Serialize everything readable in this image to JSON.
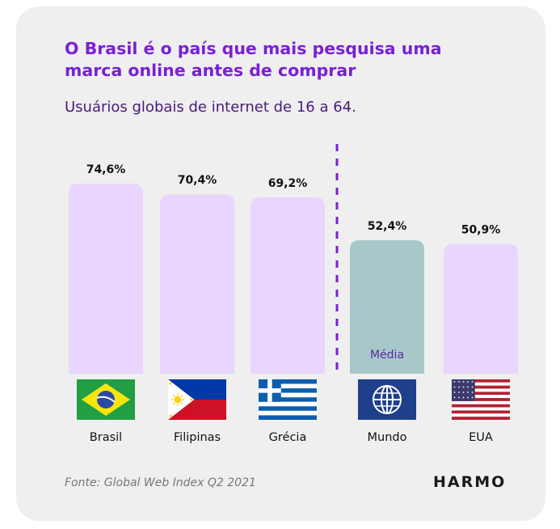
{
  "header": {
    "title": "O Brasil é o país que mais pesquisa uma marca online antes de comprar",
    "subtitle": "Usuários globais de internet de 16 a 64."
  },
  "chart_data": {
    "type": "bar",
    "title": "O Brasil é o país que mais pesquisa uma marca online antes de comprar",
    "subtitle": "Usuários globais de internet de 16 a 64.",
    "categories": [
      "Brasil",
      "Filipinas",
      "Grécia",
      "Mundo",
      "EUA"
    ],
    "values": [
      74.6,
      70.4,
      69.2,
      52.4,
      50.9
    ],
    "value_labels": [
      "74,6%",
      "70,4%",
      "69,2%",
      "52,4%",
      "50,9%"
    ],
    "flags": [
      "brazil-flag-icon",
      "philippines-flag-icon",
      "greece-flag-icon",
      "world-globe-icon",
      "usa-flag-icon"
    ],
    "bar_colors": [
      "#e8d6ff",
      "#e8d6ff",
      "#e8d6ff",
      "#a8c7c9",
      "#e8d6ff"
    ],
    "annotation": "Média",
    "ylim": [
      0,
      80
    ],
    "grid": false,
    "divider_color": "#7a1fd6"
  },
  "footer": {
    "source": "Fonte: Global Web Index Q2 2021",
    "logo": "HARMO"
  }
}
